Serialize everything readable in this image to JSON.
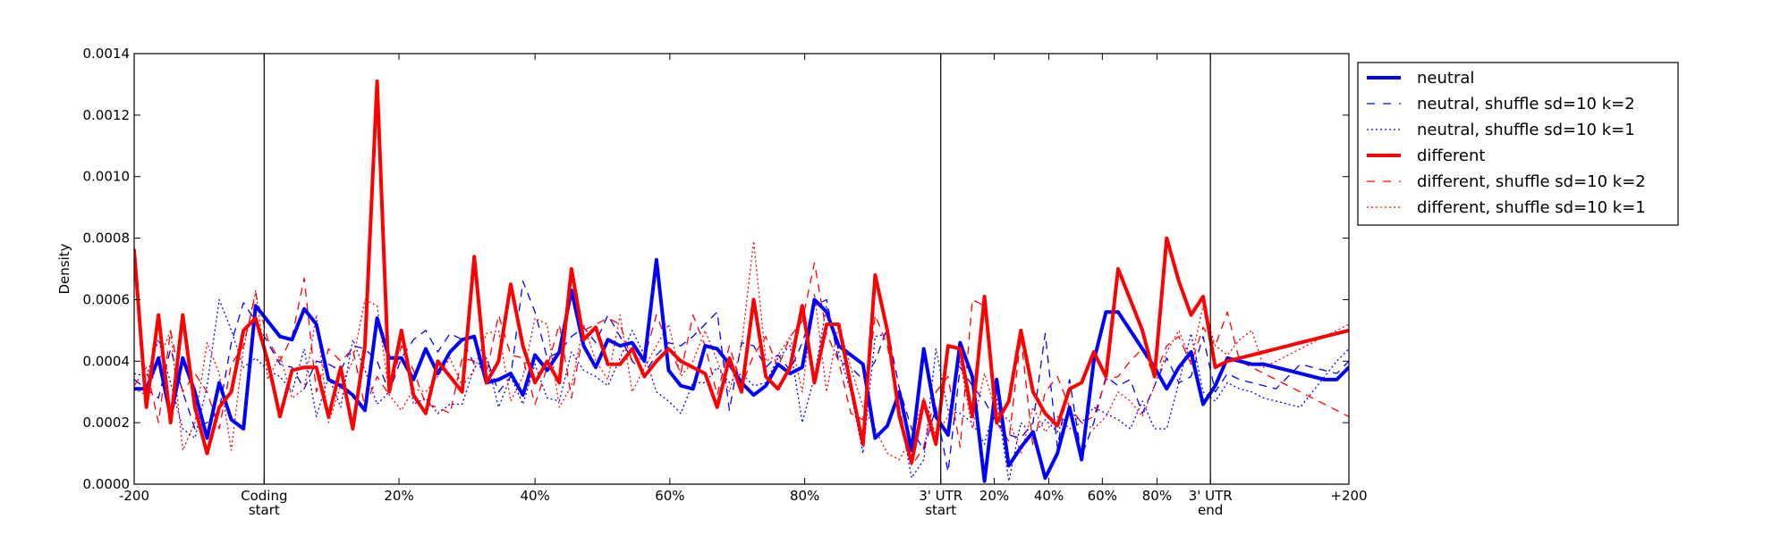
{
  "chart_data": {
    "type": "line",
    "title": "",
    "xlabel": "",
    "ylabel": "Density",
    "ylim": [
      0,
      0.0014
    ],
    "yticks": [
      0.0,
      0.0002,
      0.0004,
      0.0006,
      0.0008,
      0.001,
      0.0012,
      0.0014
    ],
    "ytick_labels": [
      "0.0000",
      "0.0002",
      "0.0004",
      "0.0006",
      "0.0008",
      "0.0010",
      "0.0012",
      "0.0014"
    ],
    "xlim": [
      0,
      100
    ],
    "x_unit": "relative position (0-100 scale across composite gene model)",
    "x_ticks": [
      {
        "x": 0,
        "label": "-200"
      },
      {
        "x": 10.7,
        "label": "Coding\nstart"
      },
      {
        "x": 21.8,
        "label": "20%"
      },
      {
        "x": 33.0,
        "label": "40%"
      },
      {
        "x": 44.1,
        "label": "60%"
      },
      {
        "x": 55.2,
        "label": "80%"
      },
      {
        "x": 66.4,
        "label": "3' UTR\nstart"
      },
      {
        "x": 70.8,
        "label": "20%"
      },
      {
        "x": 75.3,
        "label": "40%"
      },
      {
        "x": 79.7,
        "label": "60%"
      },
      {
        "x": 84.2,
        "label": "80%"
      },
      {
        "x": 88.6,
        "label": "3' UTR\nend"
      },
      {
        "x": 100,
        "label": "+200"
      }
    ],
    "region_boundaries": [
      10.7,
      66.4,
      88.6
    ],
    "legend_position": "outside-right-top",
    "x": [
      0,
      1,
      2,
      3,
      4,
      5,
      6,
      7,
      8,
      9,
      10,
      11,
      12,
      13,
      14,
      15,
      16,
      17,
      18,
      19,
      20,
      21,
      22,
      23,
      24,
      25,
      26,
      27,
      28,
      29,
      30,
      31,
      32,
      33,
      34,
      35,
      36,
      37,
      38,
      39,
      40,
      41,
      42,
      43,
      44,
      45,
      46,
      47,
      48,
      49,
      50,
      51,
      52,
      53,
      54,
      55,
      56,
      57,
      58,
      59,
      60,
      61,
      62,
      63,
      64,
      65,
      66,
      67,
      68,
      69,
      70,
      71,
      72,
      73,
      74,
      75,
      76,
      77,
      78,
      79,
      80,
      81,
      82,
      83,
      84,
      85,
      86,
      87,
      88,
      89,
      90,
      91,
      92,
      93,
      94,
      95,
      96,
      97,
      98,
      99,
      100
    ],
    "series": [
      {
        "name": "neutral",
        "color": "#0000ff",
        "style": "solid",
        "width": 4,
        "values": [
          0.00031,
          0.00031,
          0.00041,
          0.00022,
          0.00041,
          0.0003,
          0.00015,
          0.00033,
          0.00021,
          0.00018,
          0.00058,
          0.00053,
          0.00048,
          0.00047,
          0.00057,
          0.00052,
          0.00034,
          0.00032,
          0.00029,
          0.00024,
          0.00054,
          0.00041,
          0.00041,
          0.00034,
          0.00044,
          0.00036,
          0.00043,
          0.00047,
          0.00048,
          0.00033,
          0.00034,
          0.00036,
          0.00029,
          0.00042,
          0.00037,
          0.00043,
          0.00063,
          0.00045,
          0.00038,
          0.00047,
          0.00045,
          0.00046,
          0.0004,
          0.00073,
          0.00037,
          0.00032,
          0.00031,
          0.00045,
          0.00044,
          0.00039,
          0.00033,
          0.00029,
          0.00032,
          0.00039,
          0.00036,
          0.00038,
          0.0006,
          0.00056,
          0.00045,
          0.00042,
          0.00039,
          0.00015,
          0.00019,
          0.0003,
          0.00011,
          0.00044,
          0.00022,
          0.00016,
          0.00046,
          0.00035,
          1e-05,
          0.00034,
          6e-05,
          0.00012,
          0.00017,
          2e-05,
          0.0001,
          0.00025,
          8e-05,
          0.0004,
          0.00056,
          0.00056,
          0.0005,
          0.00044,
          0.00038,
          0.00031,
          0.00038,
          0.00043,
          0.00026,
          0.00032,
          0.00041,
          0.0004,
          0.00039,
          0.00039,
          0.00038,
          0.00037,
          0.00036,
          0.00035,
          0.00034,
          0.00034,
          0.00038
        ]
      },
      {
        "name": "neutral, shuffle sd=10 k=2",
        "color": "#0000ff",
        "style": "dashed",
        "width": 1.3,
        "values": [
          0.00034,
          0.00031,
          0.00028,
          0.00044,
          0.0003,
          0.00018,
          0.0002,
          0.00024,
          0.00046,
          0.00059,
          0.00053,
          0.00046,
          0.00039,
          0.00038,
          0.00031,
          0.0004,
          0.00039,
          0.00037,
          0.00045,
          0.00044,
          0.0004,
          0.0003,
          0.00041,
          0.00047,
          0.0005,
          0.00043,
          0.00049,
          0.00047,
          0.00039,
          0.00041,
          0.0003,
          0.00035,
          0.00066,
          0.00056,
          0.00041,
          0.00043,
          0.00048,
          0.00051,
          0.00046,
          0.00055,
          0.00048,
          0.0004,
          0.00036,
          0.00042,
          0.00046,
          0.00045,
          0.00048,
          0.00052,
          0.00056,
          0.00024,
          0.00046,
          0.00045,
          0.00038,
          0.00042,
          0.00037,
          0.00046,
          0.00058,
          0.0006,
          0.0004,
          0.00038,
          0.00034,
          0.0004,
          0.00051,
          0.00031,
          0.00018,
          0.00011,
          0.00025,
          4e-05,
          0.00038,
          0.00032,
          0.00027,
          0.0002,
          0.00016,
          0.00015,
          0.0002,
          0.00049,
          0.00012,
          0.00034,
          9e-05,
          0.0002,
          0.00035,
          0.00032,
          0.00034,
          0.00023,
          0.00032,
          0.00041,
          0.00033,
          0.00035,
          0.00048,
          0.0003,
          0.00036,
          0.00034,
          0.00033,
          0.00032,
          0.00031,
          0.00035,
          0.00039,
          0.00038,
          0.00037,
          0.00036,
          0.0004
        ]
      },
      {
        "name": "neutral, shuffle sd=10 k=1",
        "color": "#0000ff",
        "style": "dotted",
        "width": 1.3,
        "values": [
          0.00036,
          0.00035,
          0.00047,
          0.00033,
          0.00018,
          0.00015,
          0.00032,
          0.0006,
          0.0005,
          0.00038,
          0.00041,
          0.00037,
          0.00035,
          0.0003,
          0.00044,
          0.00022,
          0.00035,
          0.00025,
          0.00047,
          0.00037,
          0.00026,
          0.0003,
          0.0005,
          0.00026,
          0.00028,
          0.00023,
          0.00026,
          0.00026,
          0.00038,
          0.00041,
          0.00025,
          0.00035,
          0.00026,
          0.00039,
          0.00028,
          0.00027,
          0.00043,
          0.00037,
          0.00035,
          0.00032,
          0.00041,
          0.0005,
          0.00042,
          0.0003,
          0.00027,
          0.00023,
          0.00033,
          0.00033,
          0.00038,
          0.00033,
          0.00036,
          0.00032,
          0.00033,
          0.00041,
          0.00045,
          0.0002,
          0.00035,
          0.00058,
          0.00043,
          0.0003,
          0.0001,
          0.00048,
          0.00049,
          0.00024,
          2e-05,
          8e-05,
          0.00044,
          0.00024,
          0.00023,
          0.0002,
          0.00013,
          0.00028,
          1e-05,
          0.0002,
          0.00016,
          0.00021,
          0.00017,
          0.00024,
          0.0002,
          0.00025,
          0.00023,
          0.00021,
          0.00018,
          0.00027,
          0.00018,
          0.00018,
          0.00033,
          0.00049,
          0.0003,
          0.00027,
          0.00033,
          0.00031,
          0.0003,
          0.00028,
          0.00027,
          0.00026,
          0.00025,
          0.0003,
          0.00035,
          0.0004,
          0.00044
        ]
      },
      {
        "name": "different",
        "color": "#ff0000",
        "style": "solid",
        "width": 4,
        "values": [
          0.00076,
          0.00025,
          0.00055,
          0.0002,
          0.00055,
          0.00025,
          0.0001,
          0.00025,
          0.0003,
          0.0005,
          0.00054,
          0.0004,
          0.00022,
          0.00037,
          0.00038,
          0.00038,
          0.00022,
          0.00038,
          0.00018,
          0.00045,
          0.00131,
          0.0003,
          0.0005,
          0.00029,
          0.00023,
          0.0004,
          0.00035,
          0.0003,
          0.00074,
          0.00033,
          0.0004,
          0.00065,
          0.00045,
          0.00033,
          0.0004,
          0.00033,
          0.0007,
          0.00047,
          0.00051,
          0.00039,
          0.00039,
          0.00044,
          0.00035,
          0.0004,
          0.00044,
          0.0004,
          0.00038,
          0.00036,
          0.00025,
          0.00041,
          0.0003,
          0.0006,
          0.00035,
          0.00031,
          0.00038,
          0.00058,
          0.00033,
          0.00052,
          0.00052,
          0.00032,
          0.00013,
          0.00068,
          0.0005,
          0.00022,
          7e-05,
          0.00027,
          0.00013,
          0.00045,
          0.00044,
          0.00022,
          0.00061,
          0.0002,
          0.00027,
          0.0005,
          0.0003,
          0.00023,
          0.00019,
          0.00031,
          0.00033,
          0.00043,
          0.00035,
          0.0007,
          0.0006,
          0.0005,
          0.00035,
          0.0008,
          0.00066,
          0.00055,
          0.00061,
          0.00038,
          0.0004,
          0.00041,
          0.00042,
          0.00043,
          0.00044,
          0.00045,
          0.00046,
          0.00047,
          0.00048,
          0.00049,
          0.0005
        ]
      },
      {
        "name": "different, shuffle sd=10 k=2",
        "color": "#ff0000",
        "style": "dashed",
        "width": 1.3,
        "values": [
          0.00032,
          0.00038,
          0.0002,
          0.0005,
          0.0003,
          0.00036,
          0.0003,
          0.00018,
          0.00039,
          0.00045,
          0.00062,
          0.00047,
          0.0004,
          0.00048,
          0.00067,
          0.0003,
          0.00044,
          0.0004,
          0.00044,
          0.00025,
          0.00035,
          0.00029,
          0.00045,
          0.00037,
          0.00026,
          0.00025,
          0.00023,
          0.00041,
          0.0004,
          0.00036,
          0.00055,
          0.00042,
          0.00041,
          0.00026,
          0.00038,
          0.00052,
          0.00028,
          0.0005,
          0.00052,
          0.00054,
          0.00052,
          0.0004,
          0.00041,
          0.00055,
          0.00045,
          0.00036,
          0.00055,
          0.00045,
          0.00029,
          0.00045,
          0.00032,
          0.00042,
          0.00048,
          0.00038,
          0.00048,
          0.00053,
          0.00072,
          0.00049,
          0.0004,
          0.00023,
          0.00021,
          0.00055,
          0.00045,
          0.00025,
          6e-05,
          0.00012,
          0.0003,
          0.00035,
          0.00012,
          0.0006,
          0.00058,
          0.0002,
          0.00014,
          0.00048,
          0.00012,
          0.0003,
          0.00035,
          0.00025,
          0.0002,
          0.00022,
          0.00034,
          0.00035,
          0.0004,
          0.00044,
          0.00035,
          0.00045,
          0.00048,
          0.00039,
          0.00051,
          0.00045,
          0.00056,
          0.0004,
          0.00038,
          0.00036,
          0.00034,
          0.00032,
          0.0003,
          0.00028,
          0.00026,
          0.00024,
          0.00022
        ]
      },
      {
        "name": "different, shuffle sd=10 k=1",
        "color": "#ff0000",
        "style": "dotted",
        "width": 1.3,
        "values": [
          0.00031,
          0.00029,
          0.0004,
          0.0005,
          0.00011,
          0.0002,
          0.00046,
          0.00036,
          0.00011,
          0.00044,
          0.00063,
          0.00034,
          0.00042,
          0.00028,
          0.00031,
          0.00055,
          0.0002,
          0.00032,
          0.0004,
          0.0006,
          0.00058,
          0.00029,
          0.00024,
          0.00031,
          0.0003,
          0.00035,
          0.00041,
          0.00032,
          0.00037,
          0.00049,
          0.0005,
          0.00027,
          0.00035,
          0.00054,
          0.00052,
          0.00025,
          0.00032,
          0.00052,
          0.0004,
          0.00034,
          0.00055,
          0.0003,
          0.00038,
          0.00045,
          0.00052,
          0.00035,
          0.0004,
          0.0005,
          0.0004,
          0.0003,
          0.00045,
          0.00079,
          0.0004,
          0.00042,
          0.00048,
          0.0003,
          0.00062,
          0.0003,
          0.00052,
          0.00038,
          0.00025,
          0.00018,
          0.0001,
          8e-05,
          0.00015,
          0.00028,
          0.00016,
          0.00022,
          0.0004,
          0.00018,
          0.00036,
          0.00023,
          0.00021,
          0.0001,
          0.00025,
          0.00017,
          0.00022,
          0.00018,
          0.0002,
          0.00018,
          0.00022,
          0.0003,
          0.00027,
          0.00022,
          0.00032,
          0.00043,
          0.0005,
          0.0004,
          0.00058,
          0.00045,
          0.00042,
          0.00047,
          0.0005,
          0.00038,
          0.0004,
          0.00042,
          0.00044,
          0.00046,
          0.00048,
          0.0005,
          0.00052
        ]
      }
    ]
  }
}
